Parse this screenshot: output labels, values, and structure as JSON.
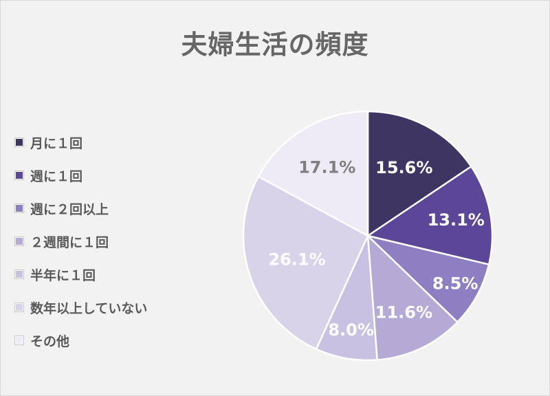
{
  "chart_data": {
    "type": "pie",
    "title": "夫婦生活の頻度",
    "legend_position": "left",
    "slices": [
      {
        "label": "月に１回",
        "value": 15.6,
        "display": "15.6%",
        "color": "#3f3563",
        "text_color": "#ffffff"
      },
      {
        "label": "週に１回",
        "value": 13.1,
        "display": "13.1%",
        "color": "#5c4697",
        "text_color": "#ffffff"
      },
      {
        "label": "週に２回以上",
        "value": 8.5,
        "display": "8.5%",
        "color": "#8d7fc1",
        "text_color": "#ffffff"
      },
      {
        "label": "２週間に１回",
        "value": 11.6,
        "display": "11.6%",
        "color": "#b5aad6",
        "text_color": "#ffffff"
      },
      {
        "label": "半年に１回",
        "value": 8.0,
        "display": "8.0%",
        "color": "#c9c1e2",
        "text_color": "#ffffff"
      },
      {
        "label": "数年以上していない",
        "value": 26.1,
        "display": "26.1%",
        "color": "#d9d3ea",
        "text_color": "#ffffff"
      },
      {
        "label": "その他",
        "value": 17.1,
        "display": "17.1%",
        "color": "#eeebf6",
        "text_color": "#7f7f7f"
      }
    ]
  }
}
